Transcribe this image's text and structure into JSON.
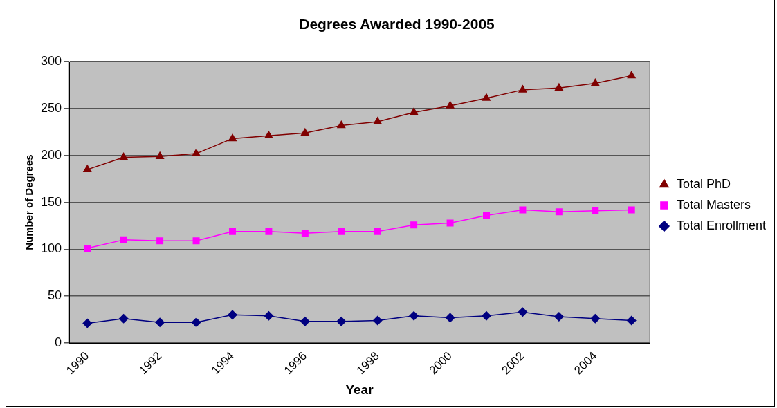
{
  "chart_data": {
    "type": "line",
    "title": "Degrees Awarded 1990-2005",
    "xlabel": "Year",
    "ylabel": "Number of Degrees",
    "categories": [
      "1990",
      null,
      "1992",
      null,
      "1994",
      null,
      "1996",
      null,
      "1998",
      null,
      "2000",
      null,
      "2002",
      null,
      "2004",
      null
    ],
    "series": [
      {
        "name": "Total PhD",
        "color": "#800000",
        "marker": "triangle",
        "values": [
          185,
          198,
          199,
          202,
          218,
          221,
          224,
          232,
          236,
          246,
          253,
          261,
          270,
          272,
          277,
          285
        ]
      },
      {
        "name": "Total Masters",
        "color": "#ff00ff",
        "marker": "square",
        "values": [
          101,
          110,
          109,
          109,
          119,
          119,
          117,
          119,
          119,
          126,
          128,
          136,
          142,
          140,
          141,
          142
        ]
      },
      {
        "name": "Total Enrollment",
        "color": "#000080",
        "marker": "diamond",
        "values": [
          21,
          26,
          22,
          22,
          30,
          29,
          23,
          23,
          24,
          29,
          27,
          29,
          33,
          28,
          26,
          24
        ]
      }
    ],
    "ylim": [
      0,
      300
    ],
    "yticks": [
      0,
      50,
      100,
      150,
      200,
      250,
      300
    ],
    "grid": "y",
    "legend": "right",
    "line_style": "solid"
  }
}
